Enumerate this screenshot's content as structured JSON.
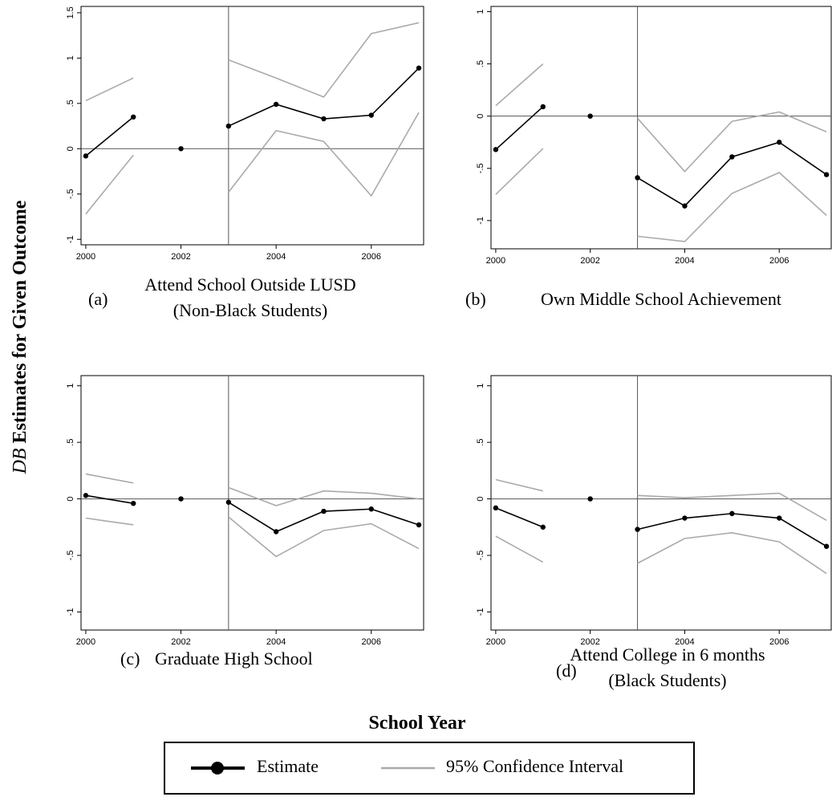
{
  "ylabel_math": "DB",
  "ylabel": "Estimates for Given Outcome",
  "xlabel": "School Year",
  "legend": [
    {
      "name": "Estimate",
      "color": "#000000"
    },
    {
      "name": "95% Confidence Interval",
      "color": "#aaaaaa"
    }
  ],
  "chart_data": [
    {
      "type": "line",
      "label": "(a)",
      "title": [
        "Attend School Outside LUSD",
        "(Non-Black Students)"
      ],
      "x": [
        2000,
        2001,
        2002,
        2003,
        2004,
        2005,
        2006,
        2007
      ],
      "xlim": [
        1999.9,
        2007.1
      ],
      "xticks": [
        2000,
        2002,
        2004,
        2006
      ],
      "ylim": [
        -1.06,
        1.57
      ],
      "yticks": [
        -1,
        {
          "value": -0.5,
          "label": "-.5"
        },
        0,
        {
          "value": 0.5,
          "label": ".5"
        },
        1,
        1.5
      ],
      "vline": 2003,
      "hline": 0,
      "estimate": [
        -0.08,
        0.35,
        0,
        0.25,
        0.49,
        0.33,
        0.37,
        0.89
      ],
      "ci_upper": [
        0.53,
        0.78,
        null,
        0.98,
        0.78,
        0.57,
        1.27,
        1.39
      ],
      "ci_lower": [
        -0.72,
        -0.07,
        null,
        -0.48,
        0.2,
        0.08,
        -0.52,
        0.4
      ]
    },
    {
      "type": "line",
      "label": "(b)",
      "title": [
        "Own Middle School Achievement"
      ],
      "x": [
        2000,
        2001,
        2002,
        2003,
        2004,
        2005,
        2006,
        2007
      ],
      "xlim": [
        1999.9,
        2007.1
      ],
      "xticks": [
        2000,
        2002,
        2004,
        2006
      ],
      "ylim": [
        -1.27,
        1.05
      ],
      "yticks": [
        -1,
        {
          "value": -0.5,
          "label": "-.5"
        },
        0,
        {
          "value": 0.5,
          "label": ".5"
        },
        1
      ],
      "vline": 2003,
      "hline": 0,
      "estimate": [
        -0.32,
        0.09,
        0,
        -0.59,
        -0.86,
        -0.39,
        -0.25,
        -0.56
      ],
      "ci_upper": [
        0.1,
        0.5,
        null,
        -0.02,
        -0.53,
        -0.05,
        0.04,
        -0.15
      ],
      "ci_lower": [
        -0.75,
        -0.31,
        null,
        -1.15,
        -1.2,
        -0.74,
        -0.54,
        -0.95
      ]
    },
    {
      "type": "line",
      "label": "(c)",
      "title": [
        "Graduate High School"
      ],
      "x": [
        2000,
        2001,
        2002,
        2003,
        2004,
        2005,
        2006,
        2007
      ],
      "xlim": [
        1999.9,
        2007.1
      ],
      "xticks": [
        2000,
        2002,
        2004,
        2006
      ],
      "ylim": [
        -1.16,
        1.09
      ],
      "yticks": [
        -1,
        {
          "value": -0.5,
          "label": "-.5"
        },
        0,
        {
          "value": 0.5,
          "label": ".5"
        },
        1
      ],
      "vline": 2003,
      "hline": 0,
      "estimate": [
        0.03,
        -0.04,
        0,
        -0.03,
        -0.29,
        -0.11,
        -0.09,
        -0.23
      ],
      "ci_upper": [
        0.22,
        0.14,
        null,
        0.1,
        -0.06,
        0.07,
        0.05,
        0
      ],
      "ci_lower": [
        -0.17,
        -0.23,
        null,
        -0.16,
        -0.51,
        -0.28,
        -0.22,
        -0.44
      ]
    },
    {
      "type": "line",
      "label": "(d)",
      "title": [
        "Attend College in 6 months",
        "(Black Students)"
      ],
      "x": [
        2000,
        2001,
        2002,
        2003,
        2004,
        2005,
        2006,
        2007
      ],
      "xlim": [
        1999.9,
        2007.1
      ],
      "xticks": [
        2000,
        2002,
        2004,
        2006
      ],
      "ylim": [
        -1.16,
        1.09
      ],
      "yticks": [
        -1,
        {
          "value": -0.5,
          "label": "-.5"
        },
        0,
        {
          "value": 0.5,
          "label": ".5"
        },
        1
      ],
      "vline": 2003,
      "hline": 0,
      "estimate": [
        -0.08,
        -0.25,
        0,
        -0.27,
        -0.17,
        -0.13,
        -0.17,
        -0.42
      ],
      "ci_upper": [
        0.17,
        0.07,
        null,
        0.03,
        0.01,
        0.03,
        0.05,
        -0.19
      ],
      "ci_lower": [
        -0.33,
        -0.56,
        null,
        -0.57,
        -0.35,
        -0.3,
        -0.38,
        -0.66
      ]
    }
  ]
}
